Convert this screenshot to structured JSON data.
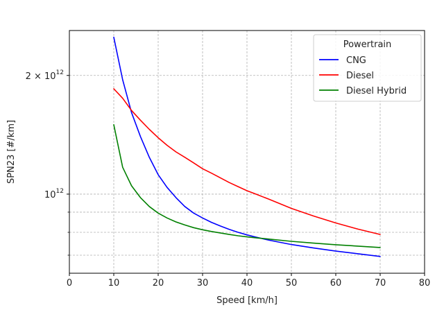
{
  "chart_data": {
    "type": "line",
    "title": "",
    "xlabel": "Speed [km/h]",
    "ylabel": "SPN23 [#/km]",
    "xlim": [
      0,
      80
    ],
    "ylim": [
      630000000000.0,
      2600000000000.0
    ],
    "yscale": "log",
    "grid": true,
    "x_ticks": [
      0,
      10,
      20,
      30,
      40,
      50,
      60,
      70,
      80
    ],
    "x_tick_labels": [
      "0",
      "10",
      "20",
      "30",
      "40",
      "50",
      "60",
      "70",
      "80"
    ],
    "y_major_ticks": [
      1000000000000.0,
      2000000000000.0
    ],
    "y_major_labels": [
      {
        "base": "10",
        "exp": "12"
      },
      {
        "coef": "2 × ",
        "base": "10",
        "exp": "12"
      }
    ],
    "y_minor_ticks": [
      700000000000.0,
      800000000000.0,
      900000000000.0
    ],
    "legend": {
      "title": "Powertrain",
      "placement": "top-right"
    },
    "x": [
      10,
      12,
      14,
      16,
      18,
      20,
      22,
      24,
      26,
      28,
      30,
      32,
      34,
      36,
      38,
      40,
      42,
      45,
      50,
      55,
      60,
      65,
      70
    ],
    "series": [
      {
        "name": "CNG",
        "color": "#0000ff",
        "values": [
          2500000000000.0,
          1950000000000.0,
          1610000000000.0,
          1400000000000.0,
          1240000000000.0,
          1120000000000.0,
          1040000000000.0,
          980000000000.0,
          930000000000.0,
          895000000000.0,
          870000000000.0,
          848000000000.0,
          830000000000.0,
          814000000000.0,
          800000000000.0,
          788000000000.0,
          778000000000.0,
          764000000000.0,
          745000000000.0,
          730000000000.0,
          717000000000.0,
          706000000000.0,
          695000000000.0
        ]
      },
      {
        "name": "Diesel",
        "color": "#ff0000",
        "values": [
          1850000000000.0,
          1750000000000.0,
          1630000000000.0,
          1540000000000.0,
          1460000000000.0,
          1390000000000.0,
          1330000000000.0,
          1280000000000.0,
          1240000000000.0,
          1200000000000.0,
          1160000000000.0,
          1130000000000.0,
          1100000000000.0,
          1070000000000.0,
          1045000000000.0,
          1020000000000.0,
          1000000000000.0,
          970000000000.0,
          920000000000.0,
          880000000000.0,
          845000000000.0,
          815000000000.0,
          790000000000.0
        ]
      },
      {
        "name": "Diesel Hybrid",
        "color": "#008000",
        "values": [
          1500000000000.0,
          1170000000000.0,
          1050000000000.0,
          980000000000.0,
          930000000000.0,
          895000000000.0,
          870000000000.0,
          850000000000.0,
          835000000000.0,
          822000000000.0,
          812000000000.0,
          804000000000.0,
          797000000000.0,
          790000000000.0,
          784000000000.0,
          779000000000.0,
          775000000000.0,
          769000000000.0,
          759000000000.0,
          751000000000.0,
          744000000000.0,
          738000000000.0,
          732000000000.0
        ]
      }
    ]
  }
}
